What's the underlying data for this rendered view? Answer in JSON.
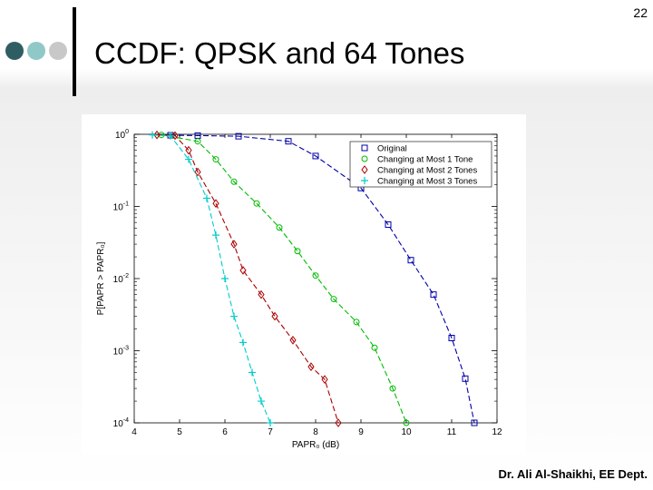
{
  "slide": {
    "number": "22",
    "title": "CCDF: QPSK and 64 Tones",
    "footer": "Dr. Ali Al-Shaikhi, EE Dept.",
    "dot_colors": [
      "#2e5e62",
      "#90c8c8",
      "#c8c8c8"
    ]
  },
  "chart_data": {
    "type": "line",
    "title": "",
    "xlabel": "PAPR₀ (dB)",
    "ylabel": "P[PAPR > PAPR₀]",
    "xlim": [
      4,
      12
    ],
    "ylim": [
      0.0001,
      1
    ],
    "yscale": "log",
    "xticks": [
      "4",
      "5",
      "6",
      "7",
      "8",
      "9",
      "10",
      "11",
      "12"
    ],
    "yticks": [
      {
        "base": "10",
        "exp": "0",
        "value": 1
      },
      {
        "base": "10",
        "exp": "-1",
        "value": 0.1
      },
      {
        "base": "10",
        "exp": "-2",
        "value": 0.01
      },
      {
        "base": "10",
        "exp": "-3",
        "value": 0.001
      },
      {
        "base": "10",
        "exp": "-4",
        "value": 0.0001
      }
    ],
    "legend_position": "top-right",
    "series": [
      {
        "name": "Original",
        "color": "#0000aa",
        "dash": "6,3",
        "marker": "square",
        "x": [
          4.8,
          5.4,
          6.3,
          7.4,
          8.0,
          9.0,
          9.6,
          10.1,
          10.6,
          11.0,
          11.3,
          11.5
        ],
        "y": [
          0.97,
          0.96,
          0.94,
          0.8,
          0.5,
          0.18,
          0.056,
          0.018,
          0.006,
          0.0015,
          0.00041,
          0.0001
        ]
      },
      {
        "name": "Changing at Most 1 Tone",
        "color": "#00bb00",
        "dash": "6,3",
        "marker": "circle",
        "x": [
          4.6,
          5.4,
          5.8,
          6.2,
          6.7,
          7.2,
          7.6,
          8.0,
          8.4,
          8.9,
          9.3,
          9.7,
          10.0
        ],
        "y": [
          0.98,
          0.8,
          0.45,
          0.22,
          0.11,
          0.051,
          0.024,
          0.011,
          0.0052,
          0.0025,
          0.0011,
          0.0003,
          0.0001
        ]
      },
      {
        "name": "Changing at Most 2 Tones",
        "color": "#aa0000",
        "dash": "6,3",
        "marker": "diamond",
        "x": [
          4.5,
          4.9,
          5.2,
          5.4,
          5.8,
          6.2,
          6.4,
          6.8,
          7.1,
          7.5,
          7.9,
          8.2,
          8.5
        ],
        "y": [
          0.98,
          0.96,
          0.6,
          0.3,
          0.11,
          0.03,
          0.013,
          0.006,
          0.003,
          0.0014,
          0.0006,
          0.0004,
          0.0001
        ]
      },
      {
        "name": "Changing at Most 3 Tones",
        "color": "#00cccc",
        "dash": "6,3",
        "marker": "plus",
        "x": [
          4.4,
          4.8,
          5.2,
          5.6,
          5.8,
          6.0,
          6.2,
          6.4,
          6.6,
          6.8,
          7.0
        ],
        "y": [
          0.98,
          0.95,
          0.45,
          0.13,
          0.04,
          0.01,
          0.003,
          0.0013,
          0.0005,
          0.0002,
          0.0001
        ]
      }
    ]
  }
}
